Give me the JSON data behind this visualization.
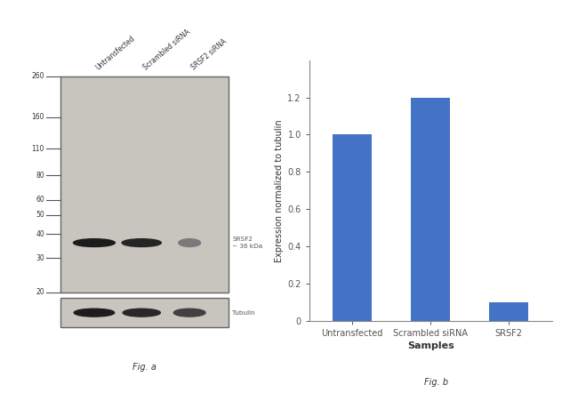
{
  "fig_width": 6.5,
  "fig_height": 4.51,
  "dpi": 100,
  "background_color": "#ffffff",
  "wb_panel": {
    "lane_labels": [
      "Untransfected",
      "Scrambled siRNA",
      "SRSF2 siRNA"
    ],
    "mw_markers": [
      260,
      160,
      110,
      80,
      60,
      50,
      40,
      30,
      20
    ],
    "srsf2_label": "SRSF2\n~ 36 kDa",
    "tubulin_label": "Tubulin",
    "fig_label": "Fig. a",
    "blot_bg": "#c8c4be",
    "blot_edge": "#666666",
    "band_colors": [
      "#1c1c1c",
      "#252525",
      "#7a7a7a"
    ],
    "tub_colors": [
      "#1c1c1c",
      "#282828",
      "#404040"
    ]
  },
  "bar_panel": {
    "categories": [
      "Untransfected",
      "Scrambled siRNA",
      "SRSF2"
    ],
    "values": [
      1.0,
      1.2,
      0.1
    ],
    "bar_color": "#4472C4",
    "xlabel": "Samples",
    "ylabel": "Expression normalized to tubulin",
    "ylim": [
      0,
      1.4
    ],
    "yticks": [
      0,
      0.2,
      0.4,
      0.6,
      0.8,
      1.0,
      1.2
    ],
    "fig_label": "Fig. b",
    "bar_width": 0.5
  }
}
